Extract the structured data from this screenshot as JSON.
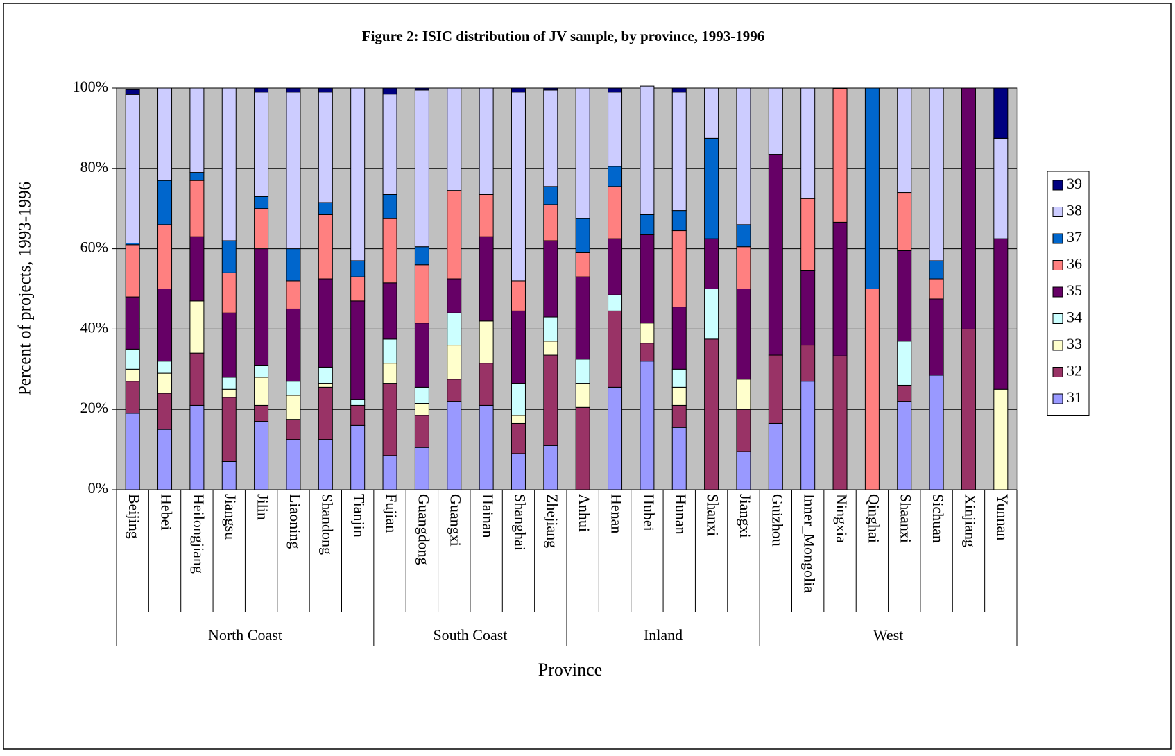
{
  "chart_data": {
    "type": "stacked_bar",
    "title": "Figure 2: ISIC distribution of JV sample, by province, 1993-1996",
    "y_label": "Percent of projects, 1993-1996",
    "x_label": "Province",
    "categories": [
      "Beijing",
      "Hebei",
      "Heilongjiang",
      "Jiangsu",
      "Jilin",
      "Liaoning",
      "Shandong",
      "Tianjin",
      "Fujian",
      "Guangdong",
      "Guangxi",
      "Hainan",
      "Shanghai",
      "Zhejiang",
      "Anhui",
      "Henan",
      "Hubei",
      "Hunan",
      "Shanxi",
      "Jiangxi",
      "Guizhou",
      "Inner_Mongolia",
      "Ningxia",
      "Qinghai",
      "Shaanxi",
      "Sichuan",
      "Xinjiang",
      "Yunnan"
    ],
    "category_groups": [
      "North Coast",
      "North Coast",
      "North Coast",
      "North Coast",
      "North Coast",
      "North Coast",
      "North Coast",
      "North Coast",
      "South Coast",
      "South Coast",
      "South Coast",
      "South Coast",
      "South Coast",
      "South Coast",
      "Inland",
      "Inland",
      "Inland",
      "Inland",
      "Inland",
      "Inland",
      "West",
      "West",
      "West",
      "West",
      "West",
      "West",
      "West",
      "West"
    ],
    "ylim": [
      0,
      100
    ],
    "yticks": [
      {
        "value": 0,
        "label": "0%"
      },
      {
        "value": 20,
        "label": "20%"
      },
      {
        "value": 40,
        "label": "40%"
      },
      {
        "value": 60,
        "label": "60%"
      },
      {
        "value": 80,
        "label": "80%"
      },
      {
        "value": 100,
        "label": "100%"
      }
    ],
    "grid": true,
    "legend": "right",
    "series": [
      {
        "name": "31",
        "color": "#9999ff",
        "values": [
          19,
          15,
          21,
          7,
          17,
          12.5,
          12.5,
          16,
          8.5,
          10.5,
          22,
          21,
          9,
          11,
          0,
          25.5,
          32,
          15.5,
          0,
          9.5,
          16.5,
          27,
          0,
          0,
          22,
          28.5,
          0,
          0
        ]
      },
      {
        "name": "32",
        "color": "#993366",
        "values": [
          8,
          9,
          13,
          16,
          4,
          5,
          13,
          5,
          18,
          8,
          5.5,
          10.5,
          7.5,
          22.5,
          20.5,
          19,
          4.5,
          5.5,
          37.5,
          10.5,
          17,
          9,
          33.3,
          0,
          4,
          0,
          40,
          0
        ]
      },
      {
        "name": "33",
        "color": "#ffffcc",
        "values": [
          3,
          5,
          13,
          2,
          7,
          6,
          1,
          0,
          5,
          3,
          8.5,
          10.5,
          2,
          3.5,
          6,
          0,
          5,
          4.5,
          0,
          7.5,
          0,
          0,
          0,
          0,
          0,
          0,
          0,
          25
        ]
      },
      {
        "name": "34",
        "color": "#ccffff",
        "values": [
          5,
          3,
          0,
          3,
          3,
          3.5,
          4,
          1.5,
          6,
          4,
          8,
          0,
          8,
          6,
          6,
          4,
          0,
          4.5,
          12.5,
          0,
          0,
          0,
          0,
          0,
          11,
          0,
          0,
          0
        ]
      },
      {
        "name": "35",
        "color": "#660066",
        "values": [
          13,
          18,
          16,
          16,
          29,
          18,
          22,
          24.5,
          14,
          16,
          8.5,
          21,
          18,
          19,
          20.5,
          14,
          22,
          15.5,
          12.5,
          22.5,
          50,
          18.5,
          33.3,
          0,
          22.5,
          19,
          60,
          37.5
        ]
      },
      {
        "name": "36",
        "color": "#ff8080",
        "values": [
          13,
          16,
          14,
          10,
          10,
          7,
          16,
          6,
          16,
          14.5,
          22,
          10.5,
          7.5,
          9,
          6,
          13,
          0,
          19,
          0,
          10.5,
          0,
          18,
          33.3,
          50,
          14.5,
          5,
          0,
          0
        ]
      },
      {
        "name": "37",
        "color": "#0066cc",
        "values": [
          0.4,
          11,
          2,
          8,
          3,
          8,
          3,
          4,
          6,
          4.5,
          0,
          0,
          0,
          4.5,
          8.5,
          5,
          5,
          5,
          25,
          5.5,
          0,
          0,
          0,
          50,
          0,
          4.5,
          0,
          0
        ]
      },
      {
        "name": "38",
        "color": "#ccccff",
        "values": [
          37,
          23,
          21,
          38,
          26,
          39,
          27.5,
          43,
          25,
          39,
          25.5,
          26.5,
          47,
          24,
          32.5,
          18.5,
          32,
          29.5,
          12.5,
          34,
          16.5,
          27.5,
          0,
          0,
          26,
          43,
          0,
          25
        ]
      },
      {
        "name": "39",
        "color": "#000080",
        "values": [
          1.2,
          0,
          0,
          0,
          1,
          1,
          1,
          0,
          1.5,
          0.5,
          0,
          0,
          1,
          0.5,
          0,
          1,
          0,
          1,
          0,
          0,
          0,
          0,
          0,
          0,
          0,
          0,
          0,
          12.5
        ]
      }
    ]
  }
}
